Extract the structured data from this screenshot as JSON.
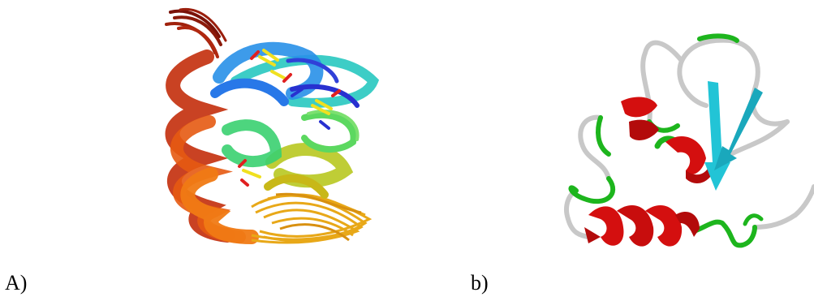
{
  "panels": {
    "a": {
      "label": "A)"
    },
    "b": {
      "label": "b)"
    }
  },
  "colors": {
    "helix": "#d40f0f",
    "sheet": "#22c4d6",
    "turn": "#1db51d",
    "coil": "#c8c8c8",
    "rainbow": [
      "#8b1a0a",
      "#c8320a",
      "#f07010",
      "#e8a818",
      "#b8c820",
      "#3ad070",
      "#28c8c0",
      "#2878e8",
      "#2830d0"
    ]
  }
}
